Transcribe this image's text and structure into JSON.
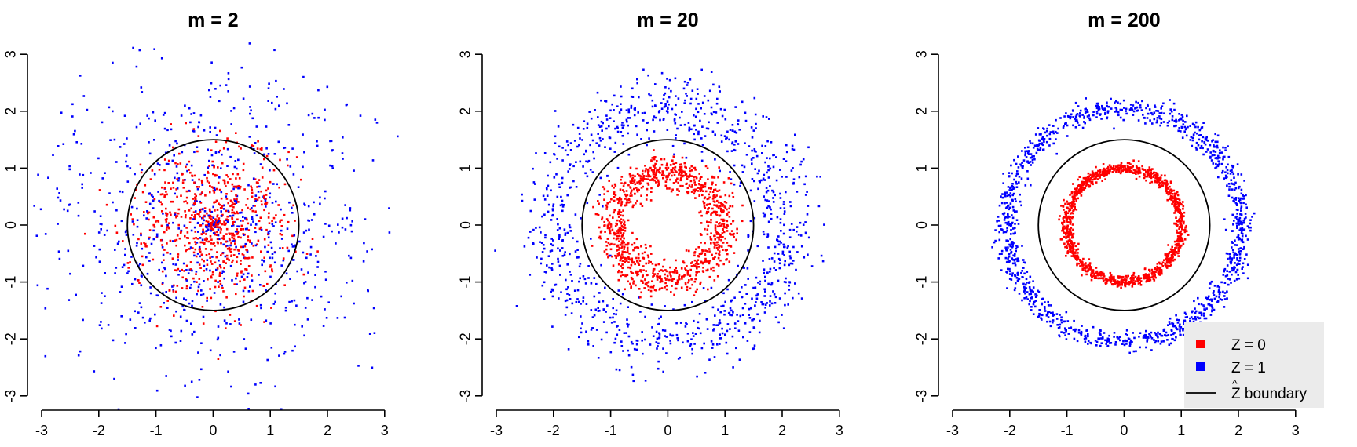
{
  "chart_data": [
    {
      "type": "scatter",
      "title": "m = 2",
      "xlabel": "",
      "ylabel": "",
      "xlim": [
        -3.2,
        3.2
      ],
      "ylim": [
        -3.2,
        3.2
      ],
      "xticks": [
        -3,
        -2,
        -1,
        0,
        1,
        2,
        3
      ],
      "yticks": [
        -3,
        -2,
        -1,
        0,
        1,
        2,
        3
      ],
      "grid": false,
      "m": 2,
      "boundary_radius": 1.5,
      "series": [
        {
          "name": "Z = 0",
          "color": "#ff0000",
          "count": 700,
          "radius_mean": 0.8,
          "radius_sd": 0.5
        },
        {
          "name": "Z = 1",
          "color": "#0000ff",
          "count": 800,
          "radius_mean": 1.7,
          "radius_sd": 1.0
        }
      ]
    },
    {
      "type": "scatter",
      "title": "m = 20",
      "xlabel": "",
      "ylabel": "",
      "xlim": [
        -3.2,
        3.2
      ],
      "ylim": [
        -3.2,
        3.2
      ],
      "xticks": [
        -3,
        -2,
        -1,
        0,
        1,
        2,
        3
      ],
      "yticks": [
        -3,
        -2,
        -1,
        0,
        1,
        2,
        3
      ],
      "grid": false,
      "m": 20,
      "boundary_radius": 1.5,
      "series": [
        {
          "name": "Z = 0",
          "color": "#ff0000",
          "count": 1000,
          "radius_mean": 0.95,
          "radius_sd": 0.16
        },
        {
          "name": "Z = 1",
          "color": "#0000ff",
          "count": 1000,
          "radius_mean": 2.05,
          "radius_sd": 0.3
        }
      ]
    },
    {
      "type": "scatter",
      "title": "m = 200",
      "xlabel": "",
      "ylabel": "",
      "xlim": [
        -3.2,
        3.2
      ],
      "ylim": [
        -3.2,
        3.2
      ],
      "xticks": [
        -3,
        -2,
        -1,
        0,
        1,
        2,
        3
      ],
      "yticks": [
        -3,
        -2,
        -1,
        0,
        1,
        2,
        3
      ],
      "grid": false,
      "m": 200,
      "boundary_radius": 1.5,
      "legend": {
        "position": "bottom-right",
        "background": "#ebebeb"
      },
      "series": [
        {
          "name": "Z = 0",
          "color": "#ff0000",
          "count": 1200,
          "radius_mean": 1.0,
          "radius_sd": 0.05
        },
        {
          "name": "Z = 1",
          "color": "#0000ff",
          "count": 1200,
          "radius_mean": 2.05,
          "radius_sd": 0.1
        }
      ]
    }
  ],
  "legend": {
    "entries": [
      {
        "label": "Z = 0",
        "kind": "square",
        "color": "#ff0000"
      },
      {
        "label": "Z = 1",
        "kind": "square",
        "color": "#0000ff"
      },
      {
        "label": "Z boundary",
        "hat": "^",
        "kind": "line",
        "color": "#000000"
      }
    ]
  }
}
